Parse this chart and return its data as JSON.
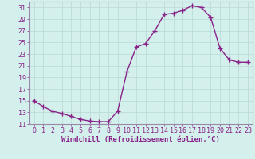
{
  "x": [
    0,
    1,
    2,
    3,
    4,
    5,
    6,
    7,
    8,
    9,
    10,
    11,
    12,
    13,
    14,
    15,
    16,
    17,
    18,
    19,
    20,
    21,
    22,
    23
  ],
  "y": [
    15,
    14,
    13.2,
    12.8,
    12.3,
    11.8,
    11.5,
    11.4,
    11.4,
    13.2,
    20.0,
    24.2,
    24.8,
    27.0,
    29.8,
    30.0,
    30.5,
    31.3,
    31.0,
    29.3,
    24.0,
    22.0,
    21.6,
    21.6
  ],
  "line_color": "#882288",
  "marker": "+",
  "marker_size": 4,
  "bg_color": "#d4f0ec",
  "grid_color": "#b8d8d4",
  "spine_color": "#9988aa",
  "xlabel": "Windchill (Refroidissement éolien,°C)",
  "ylim": [
    11,
    32
  ],
  "xlim": [
    -0.5,
    23.5
  ],
  "yticks": [
    11,
    13,
    15,
    17,
    19,
    21,
    23,
    25,
    27,
    29,
    31
  ],
  "xticks": [
    0,
    1,
    2,
    3,
    4,
    5,
    6,
    7,
    8,
    9,
    10,
    11,
    12,
    13,
    14,
    15,
    16,
    17,
    18,
    19,
    20,
    21,
    22,
    23
  ],
  "tick_label_color": "#882288",
  "xlabel_color": "#882288",
  "xlabel_fontsize": 6.5,
  "tick_fontsize": 6.0,
  "linewidth": 1.0,
  "marker_linewidth": 1.0
}
